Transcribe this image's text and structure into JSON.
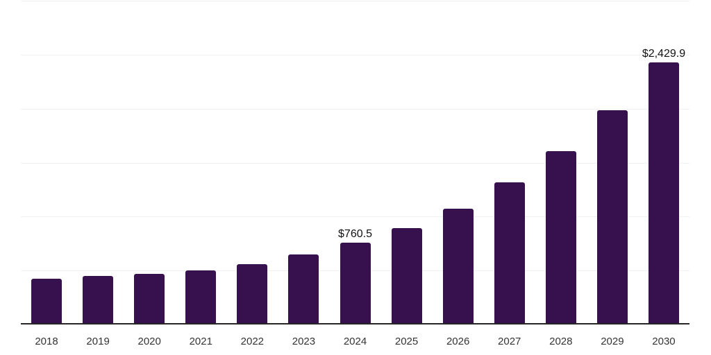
{
  "chart_data": {
    "type": "bar",
    "title": "",
    "xlabel": "",
    "ylabel": "",
    "categories": [
      "2018",
      "2019",
      "2020",
      "2021",
      "2022",
      "2023",
      "2024",
      "2025",
      "2026",
      "2027",
      "2028",
      "2029",
      "2030"
    ],
    "values": [
      427,
      447,
      472,
      504,
      562,
      646,
      760.5,
      896,
      1076,
      1314,
      1609,
      1982,
      2429.9
    ],
    "data_labels": [
      {
        "category": "2024",
        "text": "$760.5"
      },
      {
        "category": "2030",
        "text": "$2,429.9"
      }
    ],
    "ylim": [
      0,
      3000
    ],
    "gridline_step": 500,
    "grid": "horizontal",
    "legend": "none",
    "y_tick_labels_shown": false,
    "colors": {
      "bar": "#36114E",
      "gridline": "#f0f0f0",
      "axis_line": "#262626",
      "x_tick_label": "#333333",
      "value_label": "#111111",
      "background": "#ffffff"
    }
  }
}
